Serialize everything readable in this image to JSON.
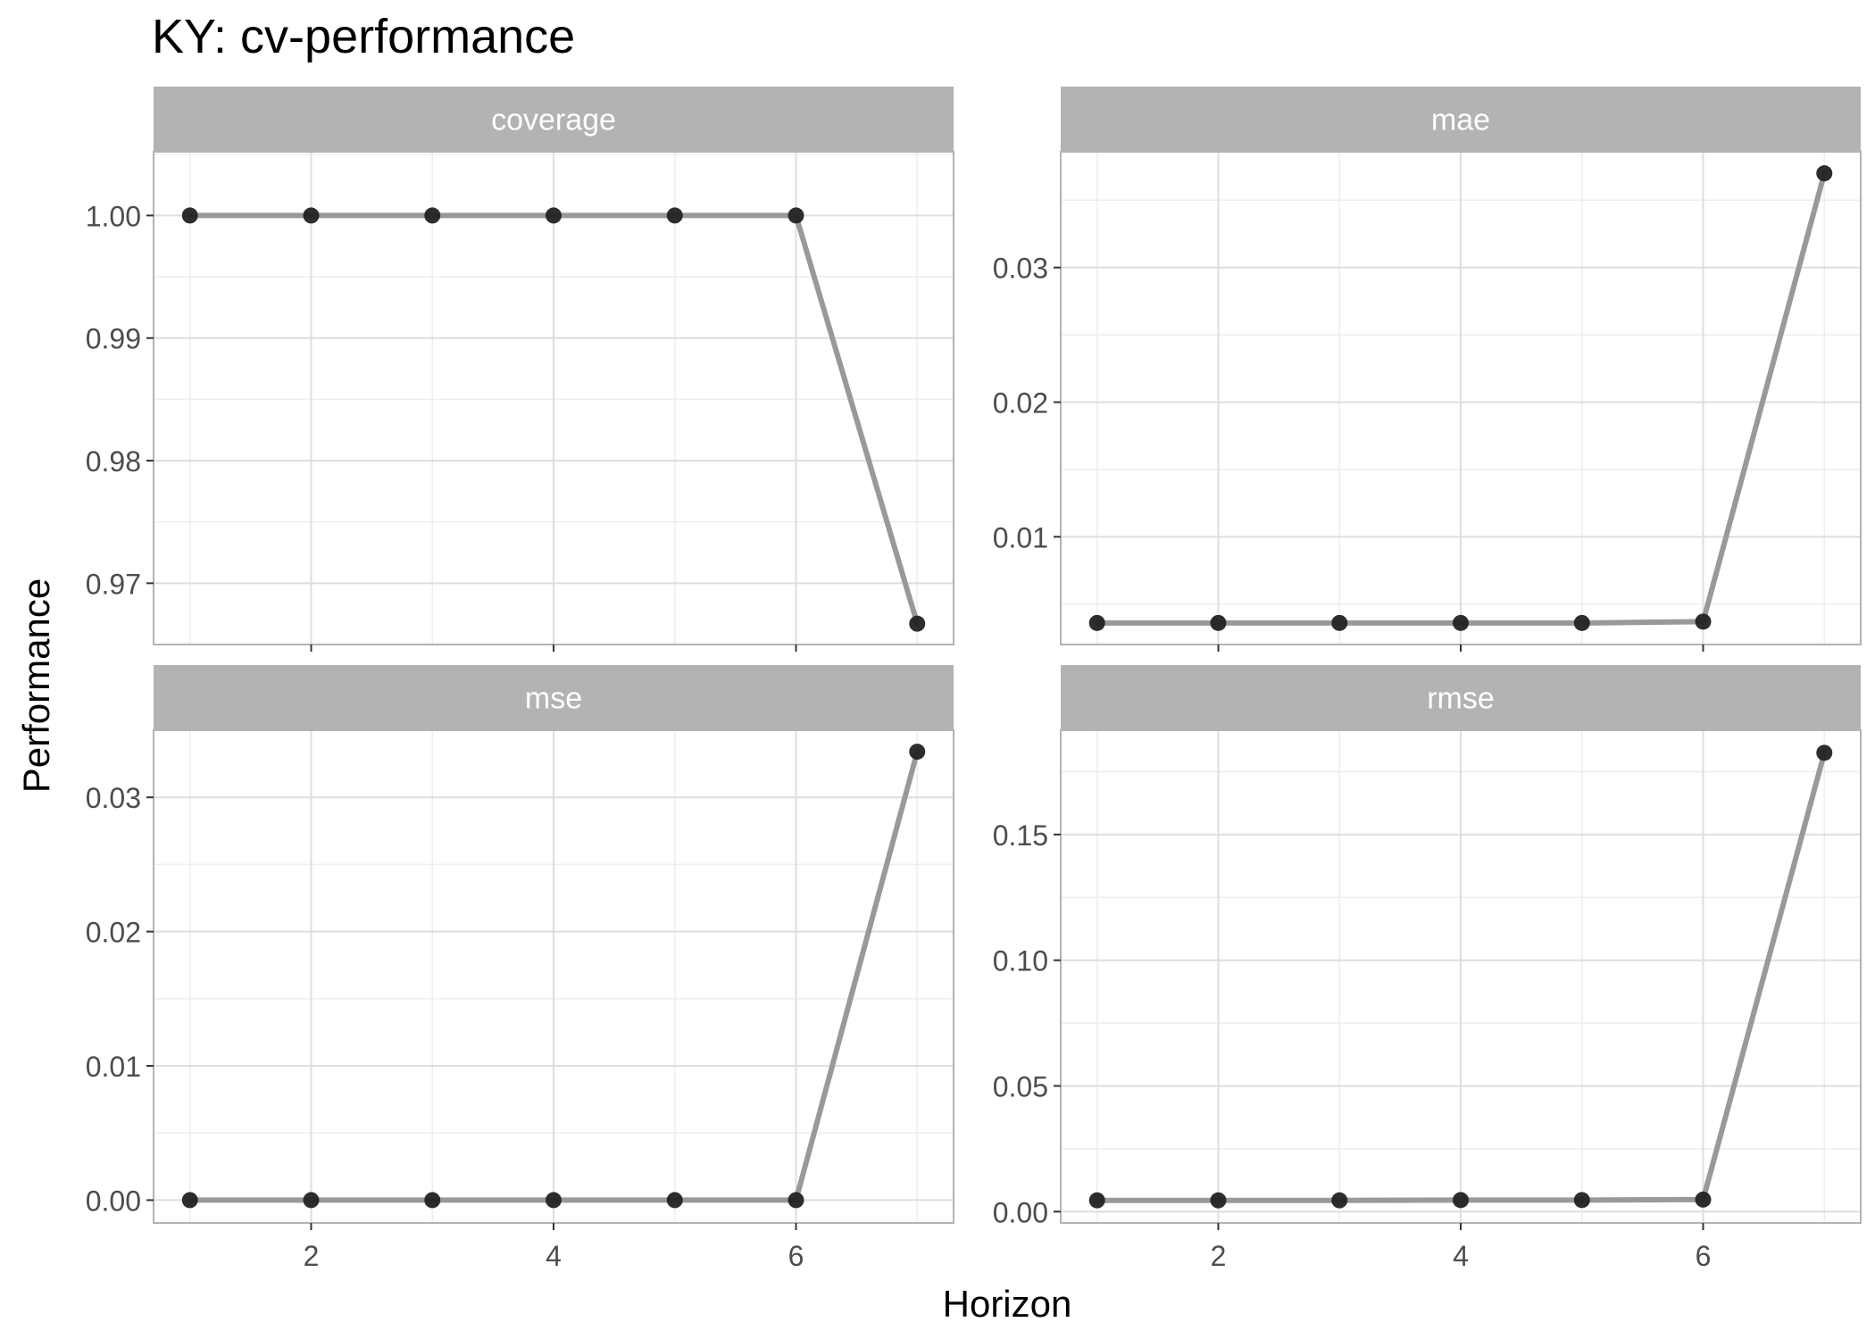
{
  "chart_data": {
    "type": "line",
    "title": "KY: cv-performance",
    "xlabel": "Horizon",
    "ylabel": "Performance",
    "grid": true,
    "legend": "none",
    "colors": {
      "line": "#999999",
      "point": "#222222",
      "strip_bg": "#b3b3b3",
      "strip_text": "#ffffff",
      "grid_major": "#dedede",
      "grid_minor": "#eeeeee",
      "panel_border": "#b3b3b3"
    },
    "x_ticks": [
      2,
      4,
      6
    ],
    "xlim": [
      0.7,
      7.3
    ],
    "facets": [
      {
        "name": "coverage",
        "x": [
          1,
          2,
          3,
          4,
          5,
          6,
          7
        ],
        "y": [
          1.0,
          1.0,
          1.0,
          1.0,
          1.0,
          1.0,
          0.9667
        ],
        "ylim": [
          0.965,
          1.0052
        ],
        "y_ticks": [
          0.97,
          0.98,
          0.99,
          1.0
        ],
        "y_tick_labels": [
          "0.97",
          "0.98",
          "0.99",
          "1.00"
        ]
      },
      {
        "name": "mae",
        "x": [
          1,
          2,
          3,
          4,
          5,
          6,
          7
        ],
        "y": [
          0.0036,
          0.0036,
          0.0036,
          0.0036,
          0.0036,
          0.0037,
          0.037
        ],
        "ylim": [
          0.002,
          0.0386
        ],
        "y_ticks": [
          0.01,
          0.02,
          0.03
        ],
        "y_tick_labels": [
          "0.01",
          "0.02",
          "0.03"
        ]
      },
      {
        "name": "mse",
        "x": [
          1,
          2,
          3,
          4,
          5,
          6,
          7
        ],
        "y": [
          0.0,
          0.0,
          0.0,
          0.0,
          0.0,
          0.0,
          0.0334
        ],
        "ylim": [
          -0.0017,
          0.035
        ],
        "y_ticks": [
          0.0,
          0.01,
          0.02,
          0.03
        ],
        "y_tick_labels": [
          "0.00",
          "0.01",
          "0.02",
          "0.03"
        ]
      },
      {
        "name": "rmse",
        "x": [
          1,
          2,
          3,
          4,
          5,
          6,
          7
        ],
        "y": [
          0.0045,
          0.0045,
          0.0045,
          0.0046,
          0.0046,
          0.0048,
          0.1825
        ],
        "ylim": [
          -0.0045,
          0.1915
        ],
        "y_ticks": [
          0.0,
          0.05,
          0.1,
          0.15
        ],
        "y_tick_labels": [
          "0.00",
          "0.05",
          "0.10",
          "0.15"
        ]
      }
    ]
  }
}
